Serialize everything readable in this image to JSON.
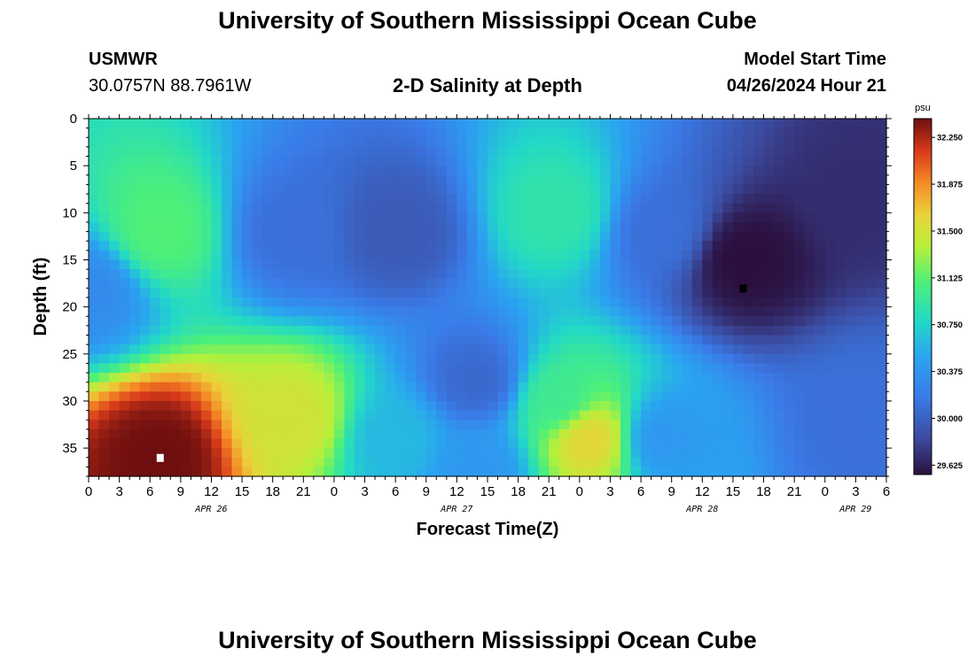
{
  "header": {
    "title": "University of Southern Mississippi Ocean Cube",
    "station": "USMWR",
    "coords": "30.0757N  88.7961W",
    "subtitle": "2-D Salinity at Depth",
    "start_label": "Model Start Time",
    "start_value": "04/26/2024 Hour 21"
  },
  "footer": {
    "title": "University of Southern Mississippi Ocean Cube"
  },
  "chart_data": {
    "type": "heatmap",
    "title": "2-D Salinity at Depth",
    "xlabel": "Forecast Time(Z)",
    "ylabel": "Depth (ft)",
    "x_hours_range": [
      0,
      78
    ],
    "x_tick_labels": [
      "0",
      "3",
      "6",
      "9",
      "12",
      "15",
      "18",
      "21",
      "0",
      "3",
      "6",
      "9",
      "12",
      "15",
      "18",
      "21",
      "0",
      "3",
      "6",
      "9",
      "12",
      "15",
      "18",
      "21",
      "0",
      "3",
      "6"
    ],
    "day_labels": [
      {
        "label": "APR 26",
        "hour": 12
      },
      {
        "label": "APR 27",
        "hour": 36
      },
      {
        "label": "APR 28",
        "hour": 60
      },
      {
        "label": "APR 29",
        "hour": 75
      }
    ],
    "y_ticks": [
      0,
      5,
      10,
      15,
      20,
      25,
      30,
      35
    ],
    "y_range": [
      0,
      38
    ],
    "colorbar": {
      "unit": "psu",
      "min": 29.55,
      "max": 32.4,
      "ticks": [
        "32.250",
        "31.875",
        "31.500",
        "31.125",
        "30.750",
        "30.375",
        "30.000",
        "29.625"
      ]
    },
    "markers": [
      {
        "type": "max",
        "hour": 7,
        "depth": 36,
        "color": "#ffffff"
      },
      {
        "type": "min",
        "hour": 64,
        "depth": 18,
        "color": "#000000"
      }
    ],
    "features": [
      {
        "hour": 0,
        "depth": 18,
        "value": 30.3
      },
      {
        "hour": 7,
        "depth": 12,
        "value": 31.1
      },
      {
        "hour": 7,
        "depth": 36,
        "value": 32.4
      },
      {
        "hour": 20,
        "depth": 12,
        "value": 30.1
      },
      {
        "hour": 20,
        "depth": 32,
        "value": 31.5
      },
      {
        "hour": 30,
        "depth": 12,
        "value": 29.95
      },
      {
        "hour": 30,
        "depth": 34,
        "value": 30.6
      },
      {
        "hour": 38,
        "depth": 28,
        "value": 30.05
      },
      {
        "hour": 38,
        "depth": 37,
        "value": 30.4
      },
      {
        "hour": 46,
        "depth": 10,
        "value": 30.9
      },
      {
        "hour": 46,
        "depth": 30,
        "value": 31.0
      },
      {
        "hour": 49,
        "depth": 34,
        "value": 31.6
      },
      {
        "hour": 56,
        "depth": 12,
        "value": 30.1
      },
      {
        "hour": 56,
        "depth": 34,
        "value": 30.4
      },
      {
        "hour": 64,
        "depth": 15,
        "value": 29.55
      },
      {
        "hour": 76,
        "depth": 8,
        "value": 29.7
      },
      {
        "hour": 76,
        "depth": 32,
        "value": 30.1
      }
    ]
  }
}
